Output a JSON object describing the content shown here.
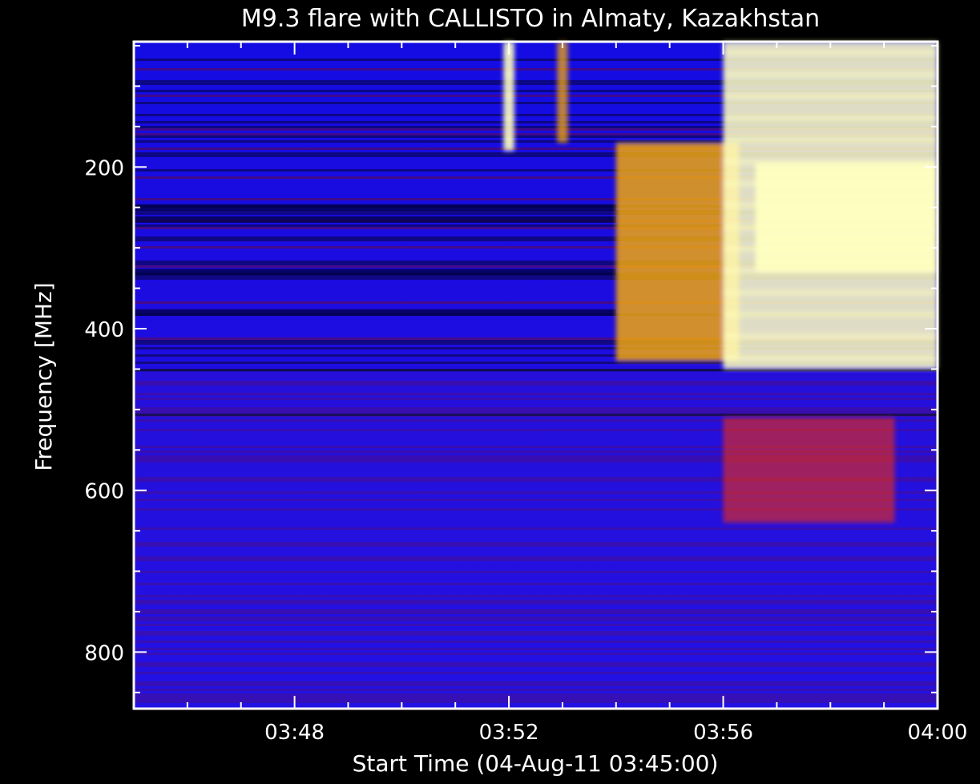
{
  "chart_data": {
    "type": "heatmap",
    "title": "M9.3 flare with CALLISTO in Almaty, Kazakhstan",
    "xlabel": "Start Time (04-Aug-11 03:45:00)",
    "ylabel": "Frequency [MHz]",
    "x_unit": "minutes after 03:45:00",
    "xlim": [
      0,
      15
    ],
    "ylim": [
      870,
      45
    ],
    "y_inverted": true,
    "x_ticks": [
      {
        "value": 3,
        "label": "03:48"
      },
      {
        "value": 7,
        "label": "03:52"
      },
      {
        "value": 11,
        "label": "03:56"
      },
      {
        "value": 15,
        "label": "04:00"
      }
    ],
    "y_ticks": [
      {
        "value": 200,
        "label": "200"
      },
      {
        "value": 400,
        "label": "400"
      },
      {
        "value": 600,
        "label": "600"
      },
      {
        "value": 800,
        "label": "800"
      }
    ],
    "colormap": [
      "#000040",
      "#0000ff",
      "#800000",
      "#ff3000",
      "#ffb000",
      "#ffffc0"
    ],
    "grid": false,
    "legend": "none",
    "features": [
      {
        "kind": "type III burst",
        "t_start": 6.9,
        "t_end": 7.1,
        "f_low": 45,
        "f_high": 180,
        "intensity": 0.9
      },
      {
        "kind": "type III burst",
        "t_start": 7.9,
        "t_end": 8.1,
        "f_low": 45,
        "f_high": 170,
        "intensity": 0.6
      },
      {
        "kind": "burst onset",
        "t_start": 9.0,
        "t_end": 11.3,
        "f_low": 170,
        "f_high": 440,
        "intensity": 0.75
      },
      {
        "kind": "broadband emission",
        "t_start": 11.0,
        "t_end": 15.0,
        "f_low": 45,
        "f_high": 450,
        "intensity": 0.85
      },
      {
        "kind": "continuum core",
        "t_start": 11.6,
        "t_end": 15.0,
        "f_low": 195,
        "f_high": 330,
        "intensity": 1.0
      },
      {
        "kind": "weak emission",
        "t_start": 11.0,
        "t_end": 14.2,
        "f_low": 510,
        "f_high": 640,
        "intensity": 0.35
      }
    ]
  }
}
